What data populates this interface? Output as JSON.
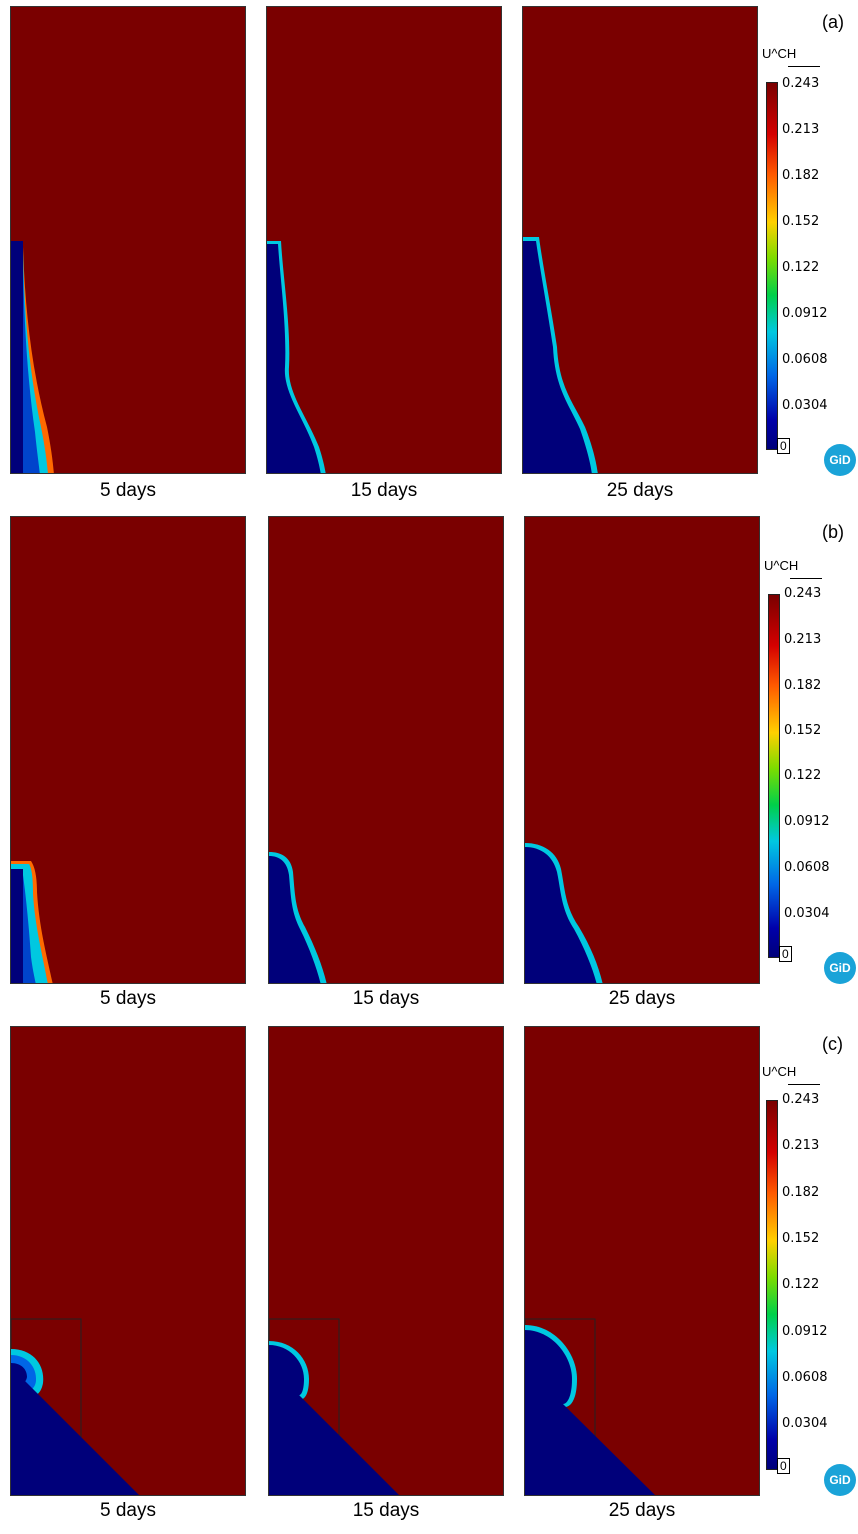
{
  "rows": [
    {
      "label": "(a)",
      "captions": [
        "5 days",
        "15 days",
        "25 days"
      ],
      "colorbar": {
        "title": "U^CH",
        "ticks": [
          "0.243",
          "0.213",
          "0.182",
          "0.152",
          "0.122",
          "0.0912",
          "0.0608",
          "0.0304"
        ],
        "min_label": "0",
        "logo": "GiD"
      }
    },
    {
      "label": "(b)",
      "captions": [
        "5 days",
        "15 days",
        "25 days"
      ],
      "colorbar": {
        "title": "U^CH",
        "ticks": [
          "0.243",
          "0.213",
          "0.182",
          "0.152",
          "0.122",
          "0.0912",
          "0.0608",
          "0.0304"
        ],
        "min_label": "0",
        "logo": "GiD"
      }
    },
    {
      "label": "(c)",
      "captions": [
        "5 days",
        "15 days",
        "25 days"
      ],
      "colorbar": {
        "title": "U^CH",
        "ticks": [
          "0.243",
          "0.213",
          "0.182",
          "0.152",
          "0.122",
          "0.0912",
          "0.0608",
          "0.0304"
        ],
        "min_label": "0",
        "logo": "GiD"
      }
    }
  ],
  "colors": {
    "high": "#7a0000",
    "low": "#00007a",
    "front": "#00c8e0",
    "logo": "#1aa3d8"
  }
}
